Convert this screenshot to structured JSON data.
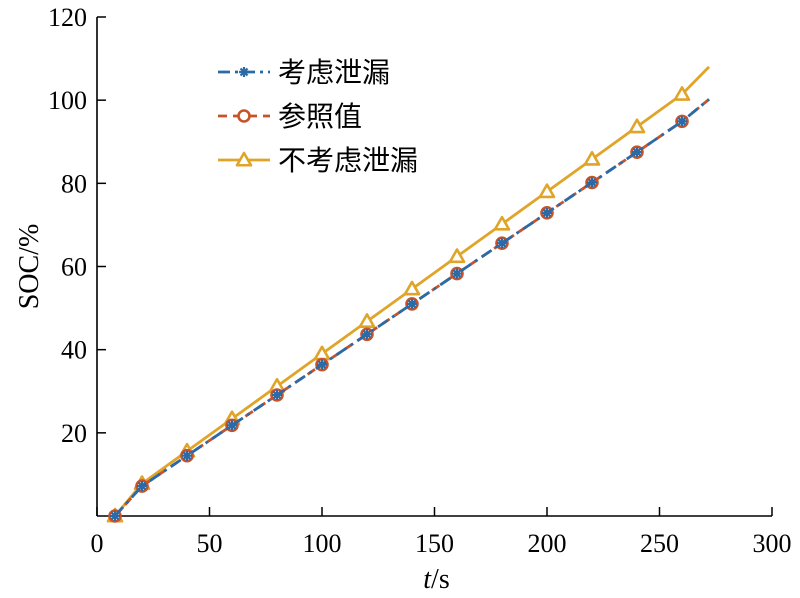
{
  "chart_data": {
    "type": "line",
    "xlabel_var": "t",
    "xlabel_unit": "/s",
    "ylabel": "SOC/%",
    "xlim": [
      0,
      300
    ],
    "ylim": [
      0,
      120
    ],
    "xticks": [
      0,
      50,
      100,
      150,
      200,
      250,
      300
    ],
    "yticks": [
      20,
      40,
      60,
      80,
      100,
      120
    ],
    "legend_position": "top-left",
    "grid": false,
    "series": [
      {
        "name": "考虑泄漏",
        "color": "#2a6aa6",
        "line_style": "dashdot",
        "marker": "star",
        "x": [
          8,
          20,
          40,
          60,
          80,
          100,
          120,
          140,
          160,
          180,
          200,
          220,
          240,
          260,
          272
        ],
        "y": [
          0,
          7.2,
          14.5,
          21.8,
          29.1,
          36.4,
          43.7,
          51.0,
          58.3,
          65.6,
          72.9,
          80.2,
          87.5,
          94.9,
          100.2
        ],
        "marker_indices": [
          0,
          1,
          2,
          3,
          4,
          5,
          6,
          7,
          8,
          9,
          10,
          11,
          12,
          13
        ]
      },
      {
        "name": "参照值",
        "color": "#c8532a",
        "line_style": "dashed",
        "marker": "circle",
        "x": [
          8,
          20,
          40,
          60,
          80,
          100,
          120,
          140,
          160,
          180,
          200,
          220,
          240,
          260,
          272
        ],
        "y": [
          0,
          7.2,
          14.5,
          21.8,
          29.1,
          36.4,
          43.7,
          51.0,
          58.3,
          65.6,
          72.9,
          80.2,
          87.5,
          94.9,
          100.2
        ],
        "marker_indices": [
          0,
          1,
          2,
          3,
          4,
          5,
          6,
          7,
          8,
          9,
          10,
          11,
          12,
          13
        ]
      },
      {
        "name": "不考虑泄漏",
        "color": "#e0a428",
        "line_style": "solid",
        "marker": "triangle",
        "x": [
          8,
          20,
          40,
          60,
          80,
          100,
          120,
          140,
          160,
          180,
          200,
          220,
          240,
          260,
          272
        ],
        "y": [
          0,
          7.8,
          15.6,
          23.4,
          31.2,
          39.0,
          46.8,
          54.6,
          62.4,
          70.2,
          78.0,
          85.8,
          93.6,
          101.4,
          108.0
        ],
        "marker_indices": [
          0,
          1,
          2,
          3,
          4,
          5,
          6,
          7,
          8,
          9,
          10,
          11,
          12,
          13
        ]
      }
    ]
  }
}
